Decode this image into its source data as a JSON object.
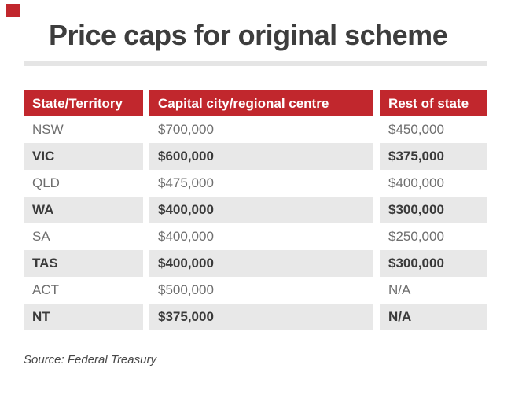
{
  "title": "Price caps for original scheme",
  "source": "Source: Federal Treasury",
  "accent": {
    "red": "#c1272d",
    "row_highlight": "#e8e8e8",
    "divider": "#e5e5e5",
    "title_color": "#3d3d3d",
    "body_text": "#6e6e6e",
    "emphasis_text": "#3a3a3a",
    "header_text": "#ffffff"
  },
  "emphasized_rows": [
    1,
    3,
    5,
    7
  ],
  "chart_data": {
    "type": "table",
    "title": "Price caps for original scheme",
    "columns": [
      "State/Territory",
      "Capital city/regional centre",
      "Rest of state"
    ],
    "rows": [
      [
        "NSW",
        "$700,000",
        "$450,000"
      ],
      [
        "VIC",
        "$600,000",
        "$375,000"
      ],
      [
        "QLD",
        "$475,000",
        "$400,000"
      ],
      [
        "WA",
        "$400,000",
        "$300,000"
      ],
      [
        "SA",
        "$400,000",
        "$250,000"
      ],
      [
        "TAS",
        "$400,000",
        "$300,000"
      ],
      [
        "ACT",
        "$500,000",
        "N/A"
      ],
      [
        "NT",
        "$375,000",
        "N/A"
      ]
    ],
    "source": "Source: Federal Treasury"
  }
}
